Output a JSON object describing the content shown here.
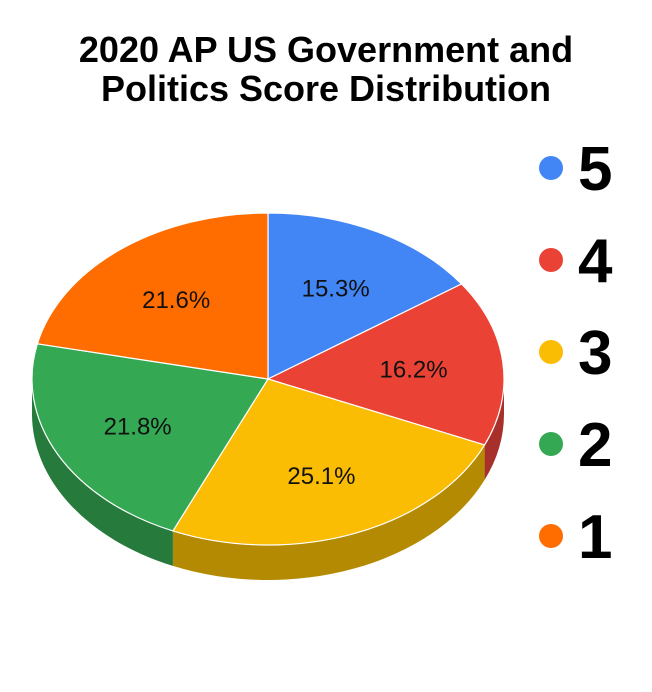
{
  "chart_data": {
    "type": "pie",
    "title_lines": [
      "2020 AP US Government and",
      "Politics Score Distribution"
    ],
    "categories": [
      "5",
      "4",
      "3",
      "2",
      "1"
    ],
    "values": [
      15.3,
      16.2,
      25.1,
      21.8,
      21.6
    ],
    "value_labels": [
      "15.3%",
      "16.2%",
      "25.1%",
      "21.8%",
      "21.6%"
    ],
    "colors": [
      "#4285f4",
      "#ea4335",
      "#fbbc04",
      "#34a853",
      "#ff6d01"
    ],
    "side_colors": [
      "#2f5fad",
      "#a8302a",
      "#b58a03",
      "#257a3c",
      "#b34d01"
    ],
    "legend_position": "right",
    "style": "3d"
  }
}
